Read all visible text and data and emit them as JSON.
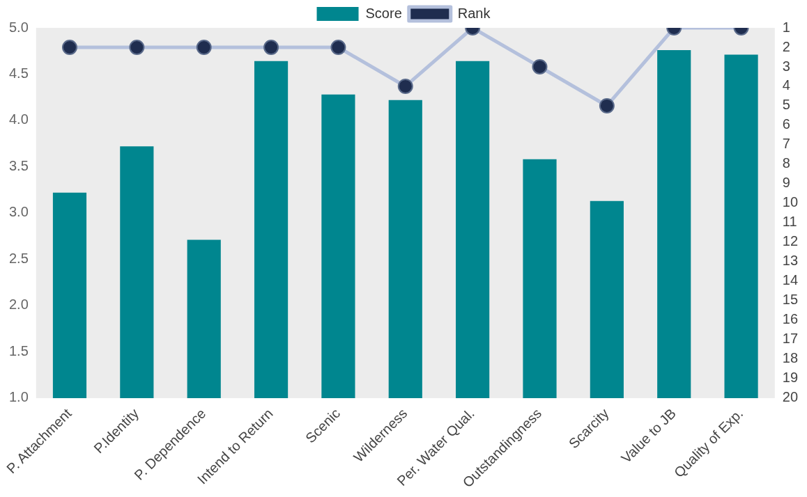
{
  "chart_data": {
    "type": "bar",
    "categories": [
      "P. Attachment",
      "P.Identity",
      "P. Dependence",
      "Intend to Return",
      "Scenic",
      "Wilderness",
      "Per. Water Qual.",
      "Outstandingness",
      "Scarcity",
      "Value to JB",
      "Quality of Exp."
    ],
    "series": [
      {
        "name": "Score",
        "color": "#00868f",
        "values": [
          3.22,
          3.72,
          2.71,
          4.64,
          4.28,
          4.22,
          4.64,
          3.58,
          3.13,
          4.76,
          4.71
        ]
      },
      {
        "name": "Rank",
        "type": "line",
        "axis": "y2",
        "color": "#b4c0dc",
        "values": [
          2,
          2,
          2,
          2,
          2,
          4,
          1,
          3,
          5,
          1,
          1
        ]
      }
    ],
    "ylim": [
      1,
      5
    ],
    "yticks": [
      {
        "value": 1,
        "label": "1.0"
      },
      1.5,
      {
        "value": 2,
        "label": "2.0"
      },
      2.5,
      {
        "value": 3,
        "label": "3.0"
      },
      3.5,
      {
        "value": 4,
        "label": "4.0"
      },
      4.5,
      {
        "value": 5,
        "label": "5.0"
      }
    ],
    "y2lim": [
      20,
      1
    ],
    "y2ticks": [
      1,
      2,
      3,
      4,
      5,
      6,
      7,
      8,
      9,
      10,
      11,
      12,
      13,
      14,
      15,
      16,
      17,
      18,
      19,
      20
    ],
    "legend": "top",
    "grid": false,
    "marker": "circle"
  }
}
